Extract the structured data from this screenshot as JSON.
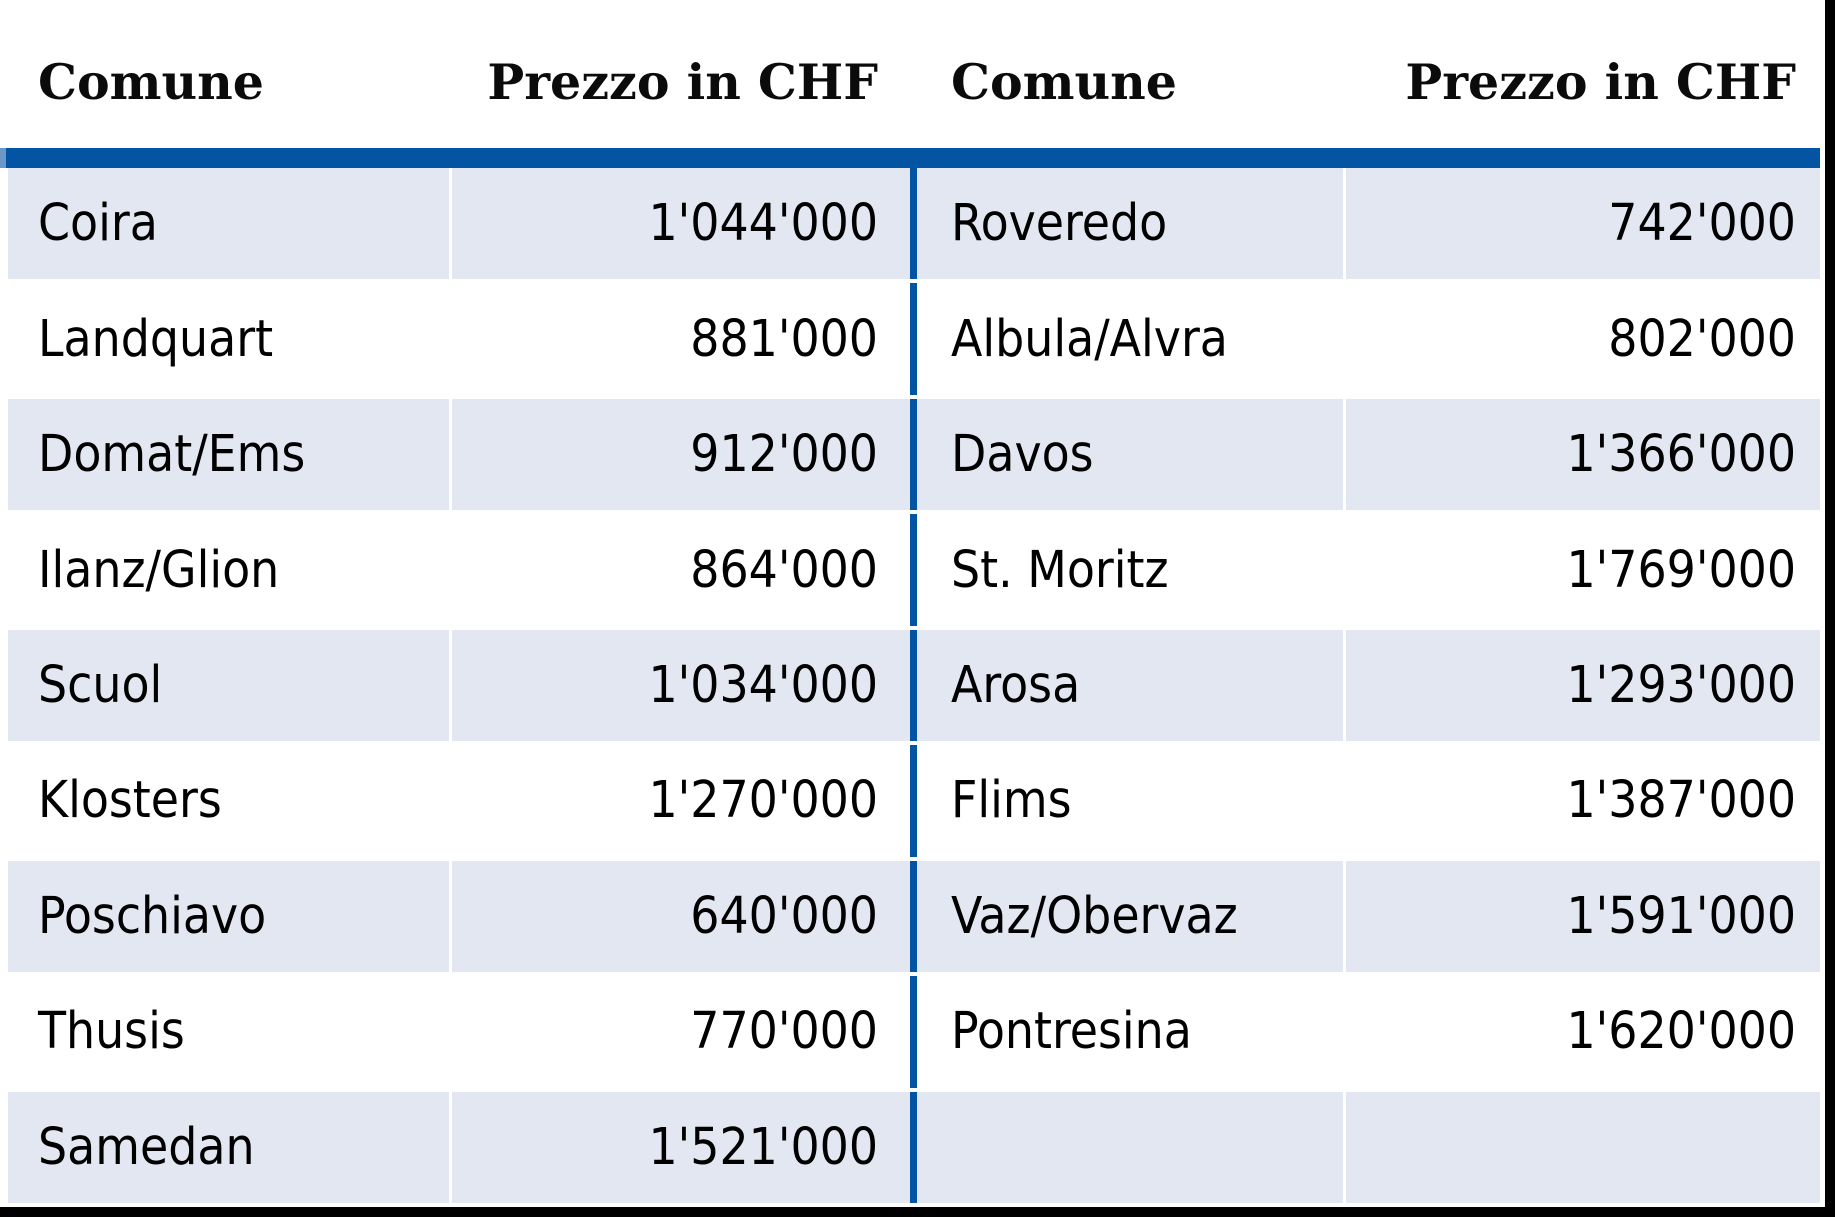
{
  "table": {
    "headers": {
      "left": {
        "comune": "Comune",
        "prezzo": "Prezzo in CHF"
      },
      "right": {
        "comune": "Comune",
        "prezzo": "Prezzo in CHF"
      }
    },
    "rows": [
      {
        "lc": "Coira",
        "lp": "1'044'000",
        "rc": "Roveredo",
        "rp": "742'000"
      },
      {
        "lc": "Landquart",
        "lp": "881'000",
        "rc": "Albula/Alvra",
        "rp": "802'000"
      },
      {
        "lc": "Domat/Ems",
        "lp": "912'000",
        "rc": "Davos",
        "rp": "1'366'000"
      },
      {
        "lc": "Ilanz/Glion",
        "lp": "864'000",
        "rc": "St. Moritz",
        "rp": "1'769'000"
      },
      {
        "lc": "Scuol",
        "lp": "1'034'000",
        "rc": "Arosa",
        "rp": "1'293'000"
      },
      {
        "lc": "Klosters",
        "lp": "1'270'000",
        "rc": "Flims",
        "rp": "1'387'000"
      },
      {
        "lc": "Poschiavo",
        "lp": "640'000",
        "rc": "Vaz/Obervaz",
        "rp": "1'591'000"
      },
      {
        "lc": "Thusis",
        "lp": "770'000",
        "rc": "Pontresina",
        "rp": "1'620'000"
      },
      {
        "lc": "Samedan",
        "lp": "1'521'000",
        "rc": "",
        "rp": ""
      }
    ]
  },
  "colors": {
    "accent_blue": "#0454a4",
    "row_shade": "#e3e7f1",
    "edge_black": "#000000",
    "text": "#000000"
  },
  "chart_data": {
    "type": "table",
    "title": "",
    "columns": [
      "Comune",
      "Prezzo in CHF",
      "Comune",
      "Prezzo in CHF"
    ],
    "left_half": {
      "comune": [
        "Coira",
        "Landquart",
        "Domat/Ems",
        "Ilanz/Glion",
        "Scuol",
        "Klosters",
        "Poschiavo",
        "Thusis",
        "Samedan"
      ],
      "prezzo_chf": [
        1044000,
        881000,
        912000,
        864000,
        1034000,
        1270000,
        640000,
        770000,
        1521000
      ]
    },
    "right_half": {
      "comune": [
        "Roveredo",
        "Albula/Alvra",
        "Davos",
        "St. Moritz",
        "Arosa",
        "Flims",
        "Vaz/Obervaz",
        "Pontresina"
      ],
      "prezzo_chf": [
        742000,
        802000,
        1366000,
        1769000,
        1293000,
        1387000,
        1591000,
        1620000
      ]
    }
  }
}
